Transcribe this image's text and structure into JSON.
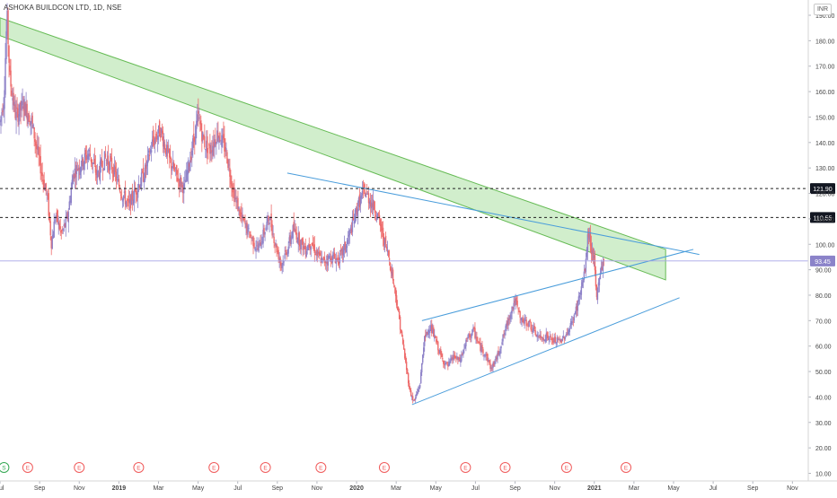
{
  "header": {
    "title": "ASHOKA BUILDCON LTD, 1D, NSE",
    "currency": "INR"
  },
  "colors": {
    "up": "#8e82c8",
    "down": "#ee6b6b",
    "channel_fill": "#b9e5b0",
    "channel_stroke": "#66bb55",
    "trendline": "#4a9ddb",
    "price_line": "#a7a3e6",
    "price_badge": "#8b83c9",
    "level_badge": "#131722",
    "dashed": "#222222",
    "event_marker": "#f05c5c",
    "split_marker": "#34a853"
  },
  "chart_data": {
    "type": "candlestick",
    "symbol": "ASHOKA BUILDCON LTD",
    "interval": "1D",
    "exchange": "NSE",
    "currency": "INR",
    "x_axis": {
      "ticks": [
        "Jul",
        "Sep",
        "Nov",
        "2019",
        "Mar",
        "May",
        "Jul",
        "Sep",
        "Nov",
        "2020",
        "Mar",
        "May",
        "Jul",
        "Sep",
        "Nov",
        "2021",
        "Mar",
        "May",
        "Jul",
        "Sep",
        "Nov"
      ],
      "tick_months": [
        0,
        2,
        4,
        6,
        8,
        10,
        12,
        14,
        16,
        18,
        20,
        22,
        24,
        26,
        28,
        30,
        32,
        34,
        36,
        38,
        40
      ],
      "range_months": [
        0,
        40.8
      ],
      "origin": "2018-07"
    },
    "y_axis": {
      "ticks": [
        "190.00",
        "180.00",
        "170.00",
        "160.00",
        "150.00",
        "140.00",
        "130.00",
        "120.00",
        "110.00",
        "100.00",
        "90.00",
        "80.00",
        "70.00",
        "60.00",
        "50.00",
        "40.00",
        "30.00",
        "20.00",
        "10.00"
      ],
      "min": 7,
      "max": 196,
      "scale": "linear",
      "position": "right"
    },
    "current_price": {
      "label": "93.45",
      "value": 93.45
    },
    "horizontal_levels": [
      {
        "label": "121.90",
        "value": 121.9,
        "style": "dashed"
      },
      {
        "label": "110.55",
        "value": 110.55,
        "style": "dashed"
      }
    ],
    "close_path": [
      [
        0.0,
        148
      ],
      [
        0.2,
        158
      ],
      [
        0.35,
        190
      ],
      [
        0.5,
        165
      ],
      [
        0.8,
        150
      ],
      [
        1.2,
        155
      ],
      [
        1.6,
        148
      ],
      [
        2.0,
        132
      ],
      [
        2.4,
        118
      ],
      [
        2.6,
        100
      ],
      [
        2.8,
        112
      ],
      [
        3.1,
        104
      ],
      [
        3.4,
        110
      ],
      [
        3.7,
        128
      ],
      [
        4.1,
        132
      ],
      [
        4.5,
        136
      ],
      [
        4.9,
        127
      ],
      [
        5.3,
        134
      ],
      [
        5.7,
        130
      ],
      [
        6.1,
        121
      ],
      [
        6.5,
        115
      ],
      [
        6.9,
        122
      ],
      [
        7.3,
        128
      ],
      [
        7.7,
        140
      ],
      [
        8.1,
        145
      ],
      [
        8.5,
        134
      ],
      [
        8.9,
        127
      ],
      [
        9.3,
        122
      ],
      [
        9.7,
        138
      ],
      [
        10.0,
        150
      ],
      [
        10.3,
        140
      ],
      [
        10.6,
        137
      ],
      [
        11.0,
        144
      ],
      [
        11.4,
        137
      ],
      [
        11.8,
        120
      ],
      [
        12.2,
        110
      ],
      [
        12.6,
        104
      ],
      [
        13.0,
        98
      ],
      [
        13.3,
        104
      ],
      [
        13.6,
        111
      ],
      [
        13.9,
        100
      ],
      [
        14.2,
        92
      ],
      [
        14.5,
        98
      ],
      [
        14.8,
        106
      ],
      [
        15.1,
        102
      ],
      [
        15.4,
        98
      ],
      [
        15.7,
        101
      ],
      [
        16.0,
        96
      ],
      [
        16.3,
        93
      ],
      [
        16.7,
        95
      ],
      [
        17.1,
        94
      ],
      [
        17.5,
        100
      ],
      [
        17.8,
        108
      ],
      [
        18.1,
        116
      ],
      [
        18.4,
        121
      ],
      [
        18.7,
        117
      ],
      [
        19.0,
        113
      ],
      [
        19.3,
        104
      ],
      [
        19.6,
        96
      ],
      [
        19.9,
        84
      ],
      [
        20.2,
        68
      ],
      [
        20.5,
        52
      ],
      [
        20.7,
        42
      ],
      [
        20.9,
        38
      ],
      [
        21.2,
        45
      ],
      [
        21.4,
        62
      ],
      [
        21.7,
        68
      ],
      [
        22.0,
        62
      ],
      [
        22.3,
        55
      ],
      [
        22.6,
        52
      ],
      [
        22.9,
        56
      ],
      [
        23.2,
        54
      ],
      [
        23.6,
        63
      ],
      [
        23.9,
        66
      ],
      [
        24.2,
        60
      ],
      [
        24.5,
        57
      ],
      [
        24.8,
        51
      ],
      [
        25.1,
        56
      ],
      [
        25.5,
        66
      ],
      [
        25.8,
        74
      ],
      [
        26.0,
        78
      ],
      [
        26.3,
        70
      ],
      [
        26.7,
        69
      ],
      [
        27.0,
        65
      ],
      [
        27.3,
        63
      ],
      [
        27.6,
        64
      ],
      [
        27.9,
        62
      ],
      [
        28.3,
        62
      ],
      [
        28.7,
        66
      ],
      [
        29.0,
        72
      ],
      [
        29.2,
        78
      ],
      [
        29.5,
        88
      ],
      [
        29.7,
        105
      ],
      [
        29.85,
        98
      ],
      [
        30.0,
        93
      ],
      [
        30.1,
        78
      ],
      [
        30.3,
        90
      ],
      [
        30.5,
        93.45
      ]
    ],
    "drawings": {
      "channel_band": {
        "upper": [
          [
            0,
            189
          ],
          [
            33.6,
            98
          ]
        ],
        "lower": [
          [
            0,
            182
          ],
          [
            33.6,
            86
          ]
        ]
      },
      "trendlines": [
        {
          "name": "descending-resistance",
          "points": [
            [
              14.5,
              128
            ],
            [
              18.3,
              122
            ],
            [
              29.7,
              104
            ],
            [
              35.3,
              96
            ]
          ]
        },
        {
          "name": "wedge-upper",
          "points": [
            [
              21.3,
              70
            ],
            [
              26.0,
              79
            ],
            [
              29.8,
              91
            ],
            [
              35.0,
              98
            ]
          ]
        },
        {
          "name": "wedge-lower",
          "points": [
            [
              20.8,
              37
            ],
            [
              25.2,
              50
            ],
            [
              28.4,
              60
            ],
            [
              34.3,
              79
            ]
          ]
        }
      ]
    },
    "events": [
      {
        "type": "split",
        "label": "S",
        "month": 0.2
      },
      {
        "type": "earnings",
        "label": "E",
        "month": 1.4
      },
      {
        "type": "earnings",
        "label": "E",
        "month": 4.0
      },
      {
        "type": "earnings",
        "label": "E",
        "month": 7.0
      },
      {
        "type": "earnings",
        "label": "E",
        "month": 10.8
      },
      {
        "type": "earnings",
        "label": "E",
        "month": 13.4
      },
      {
        "type": "earnings",
        "label": "E",
        "month": 16.2
      },
      {
        "type": "earnings",
        "label": "E",
        "month": 19.4
      },
      {
        "type": "earnings",
        "label": "E",
        "month": 23.5
      },
      {
        "type": "earnings",
        "label": "E",
        "month": 25.5
      },
      {
        "type": "earnings",
        "label": "E",
        "month": 28.6
      },
      {
        "type": "earnings",
        "label": "E",
        "month": 31.6
      }
    ]
  }
}
